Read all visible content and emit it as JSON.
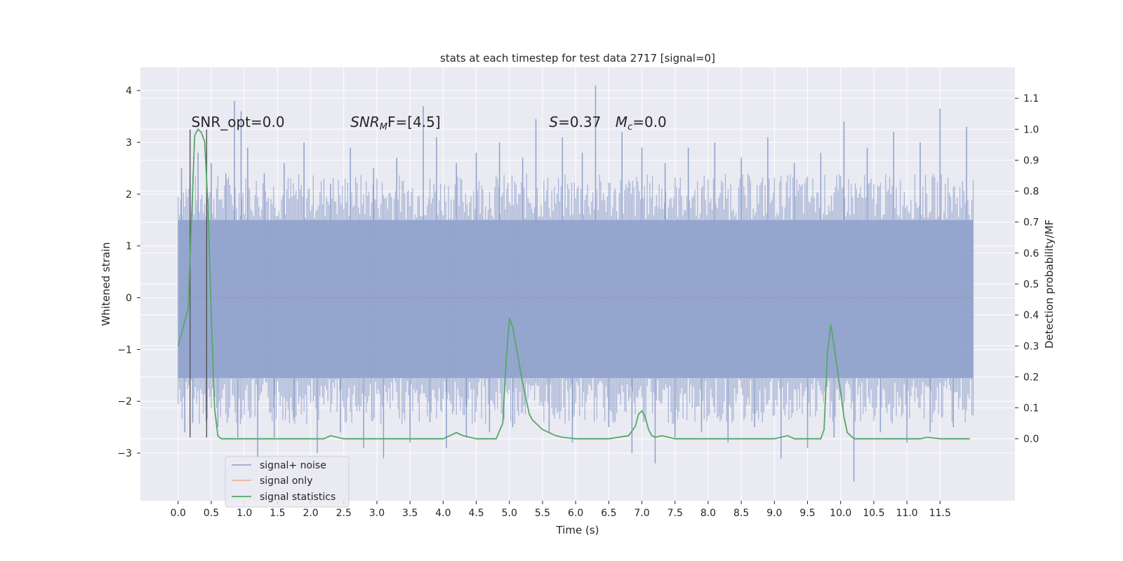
{
  "chart_data": {
    "type": "line",
    "title": "stats at each timestep for test data 2717 [signal=0]",
    "xlabel": "Time (s)",
    "ylabel": "Whitened strain",
    "ylabel_right": "Detection probability/MF",
    "xlim": [
      -0.57,
      12.63
    ],
    "ylim": [
      -3.92,
      4.45
    ],
    "ylim_right": [
      -0.2,
      1.2
    ],
    "x_ticks": [
      "0.0",
      "0.5",
      "1.0",
      "1.5",
      "2.0",
      "2.5",
      "3.0",
      "3.5",
      "4.0",
      "4.5",
      "5.0",
      "5.5",
      "6.0",
      "6.5",
      "7.0",
      "7.5",
      "8.0",
      "8.5",
      "9.0",
      "9.5",
      "10.0",
      "10.5",
      "11.0",
      "11.5"
    ],
    "y_ticks": [
      "4",
      "3",
      "2",
      "1",
      "0",
      "−1",
      "−2",
      "−3"
    ],
    "y_ticks_right": [
      "1.1",
      "1.0",
      "0.9",
      "0.8",
      "0.7",
      "0.6",
      "0.5",
      "0.4",
      "0.3",
      "0.2",
      "0.1",
      "0.0"
    ],
    "grid": true,
    "legend_position": "lower-left",
    "noise_band": {
      "low": -1.55,
      "high": 1.5,
      "xmin": 0.0,
      "xmax": 12.0
    },
    "noise_spikes": {
      "x": [
        0.05,
        0.1,
        0.18,
        0.22,
        0.3,
        0.42,
        0.5,
        0.6,
        0.72,
        0.85,
        0.9,
        0.95,
        1.05,
        1.2,
        1.3,
        1.45,
        1.6,
        1.75,
        1.9,
        2.1,
        2.3,
        2.45,
        2.6,
        2.8,
        2.95,
        3.1,
        3.3,
        3.5,
        3.7,
        3.8,
        3.9,
        4.05,
        4.2,
        4.35,
        4.5,
        4.7,
        4.85,
        5.05,
        5.2,
        5.4,
        5.6,
        5.8,
        5.95,
        6.1,
        6.3,
        6.5,
        6.7,
        6.85,
        7.0,
        7.2,
        7.35,
        7.5,
        7.7,
        7.9,
        8.1,
        8.3,
        8.5,
        8.7,
        8.9,
        9.1,
        9.3,
        9.5,
        9.7,
        9.9,
        10.05,
        10.2,
        10.4,
        10.6,
        10.8,
        11.0,
        11.2,
        11.35,
        11.5,
        11.7,
        11.9
      ],
      "y": [
        2.5,
        -2.6,
        2.3,
        -2.4,
        2.8,
        -2.2,
        2.6,
        -2.5,
        2.4,
        3.8,
        -2.7,
        3.6,
        2.9,
        -3.1,
        2.4,
        -2.7,
        2.6,
        -2.3,
        3.0,
        -3.0,
        2.2,
        -2.6,
        2.9,
        -2.9,
        2.5,
        -3.1,
        2.7,
        -2.8,
        3.7,
        -2.4,
        3.1,
        -2.9,
        2.6,
        -2.7,
        2.8,
        -2.6,
        3.0,
        -2.5,
        2.7,
        3.45,
        -2.6,
        3.1,
        -2.8,
        2.8,
        4.1,
        -2.5,
        3.2,
        -3.0,
        2.9,
        -3.2,
        2.6,
        -2.7,
        2.9,
        -2.6,
        3.0,
        -2.8,
        2.7,
        -2.5,
        3.1,
        -3.1,
        2.6,
        -2.9,
        2.8,
        -2.7,
        3.4,
        -3.55,
        2.9,
        -2.6,
        3.2,
        -2.8,
        3.0,
        -2.6,
        3.65,
        -2.5,
        3.3
      ]
    },
    "series": [
      {
        "name": "signal+ noise",
        "color": "#8da0cb"
      },
      {
        "name": "signal only",
        "color": "#dd8452",
        "x": [
          0.0,
          12.0
        ],
        "y": [
          0.0,
          0.0
        ]
      },
      {
        "name": "signal statistics",
        "color": "#55a868",
        "x": [
          0.0,
          0.15,
          0.25,
          0.3,
          0.35,
          0.4,
          0.45,
          0.5,
          0.55,
          0.6,
          0.65,
          0.7,
          1.0,
          2.0,
          2.2,
          2.3,
          2.5,
          3.0,
          3.5,
          4.0,
          4.1,
          4.2,
          4.3,
          4.5,
          4.8,
          4.9,
          4.95,
          5.0,
          5.05,
          5.1,
          5.2,
          5.3,
          5.35,
          5.4,
          5.5,
          5.6,
          5.7,
          5.8,
          6.0,
          6.5,
          6.8,
          6.9,
          6.95,
          7.0,
          7.05,
          7.1,
          7.15,
          7.2,
          7.3,
          7.5,
          7.6,
          8.0,
          9.0,
          9.2,
          9.3,
          9.5,
          9.7,
          9.75,
          9.8,
          9.85,
          9.9,
          10.0,
          10.05,
          10.1,
          10.15,
          10.2,
          10.3,
          11.0,
          11.2,
          11.3,
          11.5,
          11.95
        ],
        "y": [
          0.3,
          0.42,
          0.98,
          1.0,
          0.99,
          0.96,
          0.75,
          0.4,
          0.1,
          0.01,
          0.0,
          0.0,
          0.0,
          0.0,
          0.0,
          0.01,
          0.0,
          0.0,
          0.0,
          0.0,
          0.01,
          0.02,
          0.01,
          0.0,
          0.0,
          0.05,
          0.25,
          0.39,
          0.36,
          0.3,
          0.18,
          0.08,
          0.06,
          0.05,
          0.03,
          0.02,
          0.01,
          0.005,
          0.0,
          0.0,
          0.01,
          0.04,
          0.08,
          0.09,
          0.07,
          0.03,
          0.01,
          0.005,
          0.01,
          0.0,
          0.0,
          0.0,
          0.0,
          0.01,
          0.0,
          0.0,
          0.0,
          0.03,
          0.28,
          0.37,
          0.3,
          0.15,
          0.07,
          0.02,
          0.01,
          0.0,
          0.0,
          0.0,
          0.0,
          0.005,
          0.0,
          0.0
        ]
      }
    ],
    "vlines": [
      {
        "x": 0.18,
        "y0": -2.7,
        "y1": 3.25,
        "color": "#555555"
      },
      {
        "x": 0.43,
        "y0": -2.7,
        "y1": 3.25,
        "color": "#555555"
      }
    ],
    "annotations": [
      {
        "text": "SNR_opt=0.0",
        "x": 0.2,
        "y": 3.3
      },
      {
        "text": "SNR",
        "sub": "M",
        "rest": "F=[4.5]",
        "x": 2.6,
        "y": 3.3,
        "italic": true
      },
      {
        "text": "S",
        "rest": "=0.37",
        "x": 5.6,
        "y": 3.3,
        "italic": true
      },
      {
        "text": "M",
        "sub": "c",
        "rest": "=0.0",
        "x": 6.6,
        "y": 3.3,
        "italic": true
      }
    ]
  }
}
